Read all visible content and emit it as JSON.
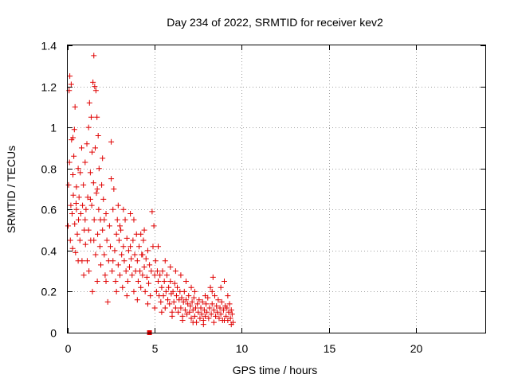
{
  "chart_data": {
    "type": "scatter",
    "title": "Day 234 of 2022, SRMTID for receiver kev2",
    "xlabel": "GPS time / hours",
    "ylabel": "SRMTID / TECUs",
    "xlim": [
      0,
      24
    ],
    "ylim": [
      0,
      1.4
    ],
    "x_ticks": [
      0,
      5,
      10,
      15,
      20
    ],
    "x_tick_labels": [
      "0",
      "5",
      "10",
      "15",
      "20"
    ],
    "y_ticks": [
      0,
      0.2,
      0.4,
      0.6,
      0.8,
      1.0,
      1.2,
      1.4
    ],
    "y_tick_labels": [
      "0",
      "0.2",
      "0.4",
      "0.6",
      "0.8",
      "1",
      "1.2",
      "1.4"
    ],
    "grid": true,
    "marker": "+",
    "color": "#e00000",
    "series": [
      {
        "name": "kev2",
        "points": [
          [
            0.02,
            0.52
          ],
          [
            0.05,
            0.72
          ],
          [
            0.08,
            1.18
          ],
          [
            0.1,
            0.83
          ],
          [
            0.12,
            1.25
          ],
          [
            0.15,
            0.45
          ],
          [
            0.18,
            0.62
          ],
          [
            0.2,
            1.21
          ],
          [
            0.22,
            0.94
          ],
          [
            0.25,
            0.58
          ],
          [
            0.28,
            0.41
          ],
          [
            0.3,
            0.77
          ],
          [
            0.32,
            0.67
          ],
          [
            0.35,
            0.86
          ],
          [
            0.38,
            0.99
          ],
          [
            0.4,
            0.53
          ],
          [
            0.42,
            1.1
          ],
          [
            0.45,
            0.39
          ],
          [
            0.48,
            0.63
          ],
          [
            0.5,
            0.71
          ],
          [
            0.55,
            0.48
          ],
          [
            0.6,
            0.8
          ],
          [
            0.62,
            0.55
          ],
          [
            0.65,
            0.66
          ],
          [
            0.7,
            0.45
          ],
          [
            0.72,
            0.78
          ],
          [
            0.75,
            0.58
          ],
          [
            0.8,
            0.9
          ],
          [
            0.82,
            0.35
          ],
          [
            0.85,
            0.62
          ],
          [
            0.9,
            0.72
          ],
          [
            0.92,
            0.28
          ],
          [
            0.95,
            0.5
          ],
          [
            1.0,
            0.83
          ],
          [
            1.02,
            0.43
          ],
          [
            1.05,
            0.6
          ],
          [
            1.1,
            0.92
          ],
          [
            1.12,
            0.35
          ],
          [
            1.15,
            0.66
          ],
          [
            1.2,
            1.0
          ],
          [
            1.22,
            0.3
          ],
          [
            1.25,
            1.12
          ],
          [
            1.3,
            0.78
          ],
          [
            1.32,
            0.45
          ],
          [
            1.35,
            1.05
          ],
          [
            1.38,
            0.62
          ],
          [
            1.4,
            0.88
          ],
          [
            1.42,
            0.2
          ],
          [
            1.45,
            1.22
          ],
          [
            1.48,
            0.73
          ],
          [
            1.5,
            1.35
          ],
          [
            1.52,
            0.55
          ],
          [
            1.55,
            1.2
          ],
          [
            1.58,
            0.9
          ],
          [
            1.6,
            0.38
          ],
          [
            1.62,
            1.18
          ],
          [
            1.65,
            0.68
          ],
          [
            1.68,
            1.05
          ],
          [
            1.7,
            0.25
          ],
          [
            1.72,
            0.48
          ],
          [
            1.75,
            0.96
          ],
          [
            1.78,
            0.6
          ],
          [
            1.8,
            0.8
          ],
          [
            1.85,
            0.42
          ],
          [
            1.88,
            0.55
          ],
          [
            1.9,
            0.33
          ],
          [
            1.95,
            0.72
          ],
          [
            2.0,
            0.5
          ],
          [
            2.05,
            0.65
          ],
          [
            2.1,
            0.38
          ],
          [
            2.15,
            0.28
          ],
          [
            2.2,
            0.58
          ],
          [
            2.25,
            0.45
          ],
          [
            2.3,
            0.15
          ],
          [
            2.35,
            0.35
          ],
          [
            2.4,
            0.52
          ],
          [
            2.45,
            0.42
          ],
          [
            2.5,
            0.93
          ],
          [
            2.55,
            0.3
          ],
          [
            2.6,
            0.6
          ],
          [
            2.65,
            0.7
          ],
          [
            2.7,
            0.4
          ],
          [
            2.75,
            0.25
          ],
          [
            2.8,
            0.48
          ],
          [
            2.85,
            0.55
          ],
          [
            2.9,
            0.33
          ],
          [
            2.95,
            0.45
          ],
          [
            3.0,
            0.28
          ],
          [
            3.05,
            0.5
          ],
          [
            3.1,
            0.38
          ],
          [
            3.15,
            0.22
          ],
          [
            3.2,
            0.42
          ],
          [
            3.25,
            0.35
          ],
          [
            3.3,
            0.55
          ],
          [
            3.35,
            0.3
          ],
          [
            3.4,
            0.46
          ],
          [
            3.45,
            0.25
          ],
          [
            3.5,
            0.4
          ],
          [
            3.55,
            0.32
          ],
          [
            3.6,
            0.58
          ],
          [
            3.65,
            0.36
          ],
          [
            3.7,
            0.28
          ],
          [
            3.75,
            0.45
          ],
          [
            3.8,
            0.2
          ],
          [
            3.85,
            0.38
          ],
          [
            3.9,
            0.3
          ],
          [
            3.95,
            0.48
          ],
          [
            4.0,
            0.35
          ],
          [
            4.05,
            0.25
          ],
          [
            4.1,
            0.42
          ],
          [
            4.15,
            0.3
          ],
          [
            4.2,
            0.22
          ],
          [
            4.25,
            0.38
          ],
          [
            4.3,
            0.28
          ],
          [
            4.35,
            0.45
          ],
          [
            4.4,
            0.32
          ],
          [
            4.45,
            0.2
          ],
          [
            4.5,
            0.36
          ],
          [
            4.55,
            0.27
          ],
          [
            4.6,
            0.4
          ],
          [
            4.65,
            0.24
          ],
          [
            4.7,
            0.33
          ],
          [
            4.75,
            0.18
          ],
          [
            4.8,
            0.3
          ],
          [
            4.85,
            0.59
          ],
          [
            4.9,
            0.42
          ],
          [
            4.95,
            0.52
          ],
          [
            5.0,
            0.28
          ],
          [
            5.05,
            0.35
          ],
          [
            5.1,
            0.2
          ],
          [
            5.15,
            0.3
          ],
          [
            5.2,
            0.25
          ],
          [
            5.25,
            0.18
          ],
          [
            5.3,
            0.28
          ],
          [
            5.35,
            0.15
          ],
          [
            5.4,
            0.22
          ],
          [
            5.45,
            0.3
          ],
          [
            5.5,
            0.18
          ],
          [
            5.55,
            0.25
          ],
          [
            5.6,
            0.12
          ],
          [
            5.65,
            0.2
          ],
          [
            5.7,
            0.28
          ],
          [
            5.75,
            0.16
          ],
          [
            5.8,
            0.22
          ],
          [
            5.85,
            0.14
          ],
          [
            5.9,
            0.25
          ],
          [
            5.95,
            0.19
          ],
          [
            6.0,
            0.1
          ],
          [
            6.05,
            0.2
          ],
          [
            6.1,
            0.15
          ],
          [
            6.15,
            0.24
          ],
          [
            6.2,
            0.12
          ],
          [
            6.25,
            0.18
          ],
          [
            6.3,
            0.22
          ],
          [
            6.35,
            0.1
          ],
          [
            6.4,
            0.16
          ],
          [
            6.45,
            0.2
          ],
          [
            6.5,
            0.12
          ],
          [
            6.55,
            0.17
          ],
          [
            6.6,
            0.08
          ],
          [
            6.65,
            0.15
          ],
          [
            6.7,
            0.2
          ],
          [
            6.75,
            0.11
          ],
          [
            6.8,
            0.16
          ],
          [
            6.85,
            0.09
          ],
          [
            6.9,
            0.14
          ],
          [
            6.95,
            0.18
          ],
          [
            7.0,
            0.1
          ],
          [
            7.05,
            0.13
          ],
          [
            7.1,
            0.07
          ],
          [
            7.15,
            0.15
          ],
          [
            7.2,
            0.11
          ],
          [
            7.25,
            0.17
          ],
          [
            7.3,
            0.08
          ],
          [
            7.35,
            0.12
          ],
          [
            7.4,
            0.05
          ],
          [
            7.45,
            0.14
          ],
          [
            7.5,
            0.1
          ],
          [
            7.55,
            0.16
          ],
          [
            7.6,
            0.07
          ],
          [
            7.65,
            0.12
          ],
          [
            7.7,
            0.09
          ],
          [
            7.75,
            0.15
          ],
          [
            7.8,
            0.06
          ],
          [
            7.85,
            0.11
          ],
          [
            7.9,
            0.08
          ],
          [
            7.95,
            0.14
          ],
          [
            8.0,
            0.1
          ],
          [
            8.05,
            0.17
          ],
          [
            8.1,
            0.07
          ],
          [
            8.15,
            0.12
          ],
          [
            8.2,
            0.22
          ],
          [
            8.25,
            0.09
          ],
          [
            8.3,
            0.14
          ],
          [
            8.35,
            0.27
          ],
          [
            8.4,
            0.11
          ],
          [
            8.45,
            0.18
          ],
          [
            8.5,
            0.08
          ],
          [
            8.55,
            0.13
          ],
          [
            8.6,
            0.1
          ],
          [
            8.65,
            0.16
          ],
          [
            8.7,
            0.07
          ],
          [
            8.75,
            0.12
          ],
          [
            8.8,
            0.09
          ],
          [
            8.85,
            0.15
          ],
          [
            8.9,
            0.06
          ],
          [
            8.95,
            0.11
          ],
          [
            9.0,
            0.25
          ],
          [
            9.05,
            0.13
          ],
          [
            9.1,
            0.08
          ],
          [
            9.15,
            0.12
          ],
          [
            9.2,
            0.06
          ],
          [
            9.25,
            0.1
          ],
          [
            9.3,
            0.14
          ],
          [
            9.35,
            0.07
          ],
          [
            9.4,
            0.11
          ],
          [
            9.45,
            0.09
          ],
          [
            9.5,
            0.05
          ],
          [
            2.0,
            0.85
          ],
          [
            2.5,
            0.75
          ],
          [
            1.2,
            0.5
          ],
          [
            0.6,
            0.35
          ],
          [
            3.2,
            0.6
          ],
          [
            4.2,
            0.48
          ],
          [
            3.8,
            0.55
          ],
          [
            4.4,
            0.5
          ],
          [
            2.6,
            0.35
          ],
          [
            3.0,
            0.52
          ],
          [
            5.2,
            0.42
          ],
          [
            5.6,
            0.35
          ],
          [
            6.2,
            0.3
          ],
          [
            6.8,
            0.25
          ],
          [
            7.3,
            0.2
          ],
          [
            7.9,
            0.18
          ],
          [
            8.3,
            0.2
          ],
          [
            8.8,
            0.22
          ],
          [
            9.2,
            0.18
          ],
          [
            5.9,
            0.32
          ],
          [
            6.5,
            0.28
          ],
          [
            7.1,
            0.22
          ],
          [
            0.3,
            0.95
          ],
          [
            0.5,
            0.6
          ],
          [
            1.0,
            0.55
          ],
          [
            1.5,
            0.45
          ],
          [
            2.2,
            0.25
          ],
          [
            2.8,
            0.2
          ],
          [
            3.4,
            0.18
          ],
          [
            4.0,
            0.16
          ],
          [
            4.6,
            0.14
          ],
          [
            5.0,
            0.12
          ],
          [
            5.4,
            0.1
          ],
          [
            6.0,
            0.08
          ],
          [
            6.6,
            0.06
          ],
          [
            7.2,
            0.05
          ],
          [
            7.8,
            0.04
          ],
          [
            8.4,
            0.05
          ],
          [
            9.0,
            0.06
          ],
          [
            9.4,
            0.04
          ],
          [
            1.3,
            0.65
          ],
          [
            1.7,
            0.7
          ],
          [
            2.1,
            0.55
          ],
          [
            2.9,
            0.62
          ],
          [
            3.6,
            0.42
          ],
          [
            4.3,
            0.38
          ]
        ]
      }
    ],
    "marker_box": {
      "x": 4.7,
      "y": 0.0
    }
  }
}
